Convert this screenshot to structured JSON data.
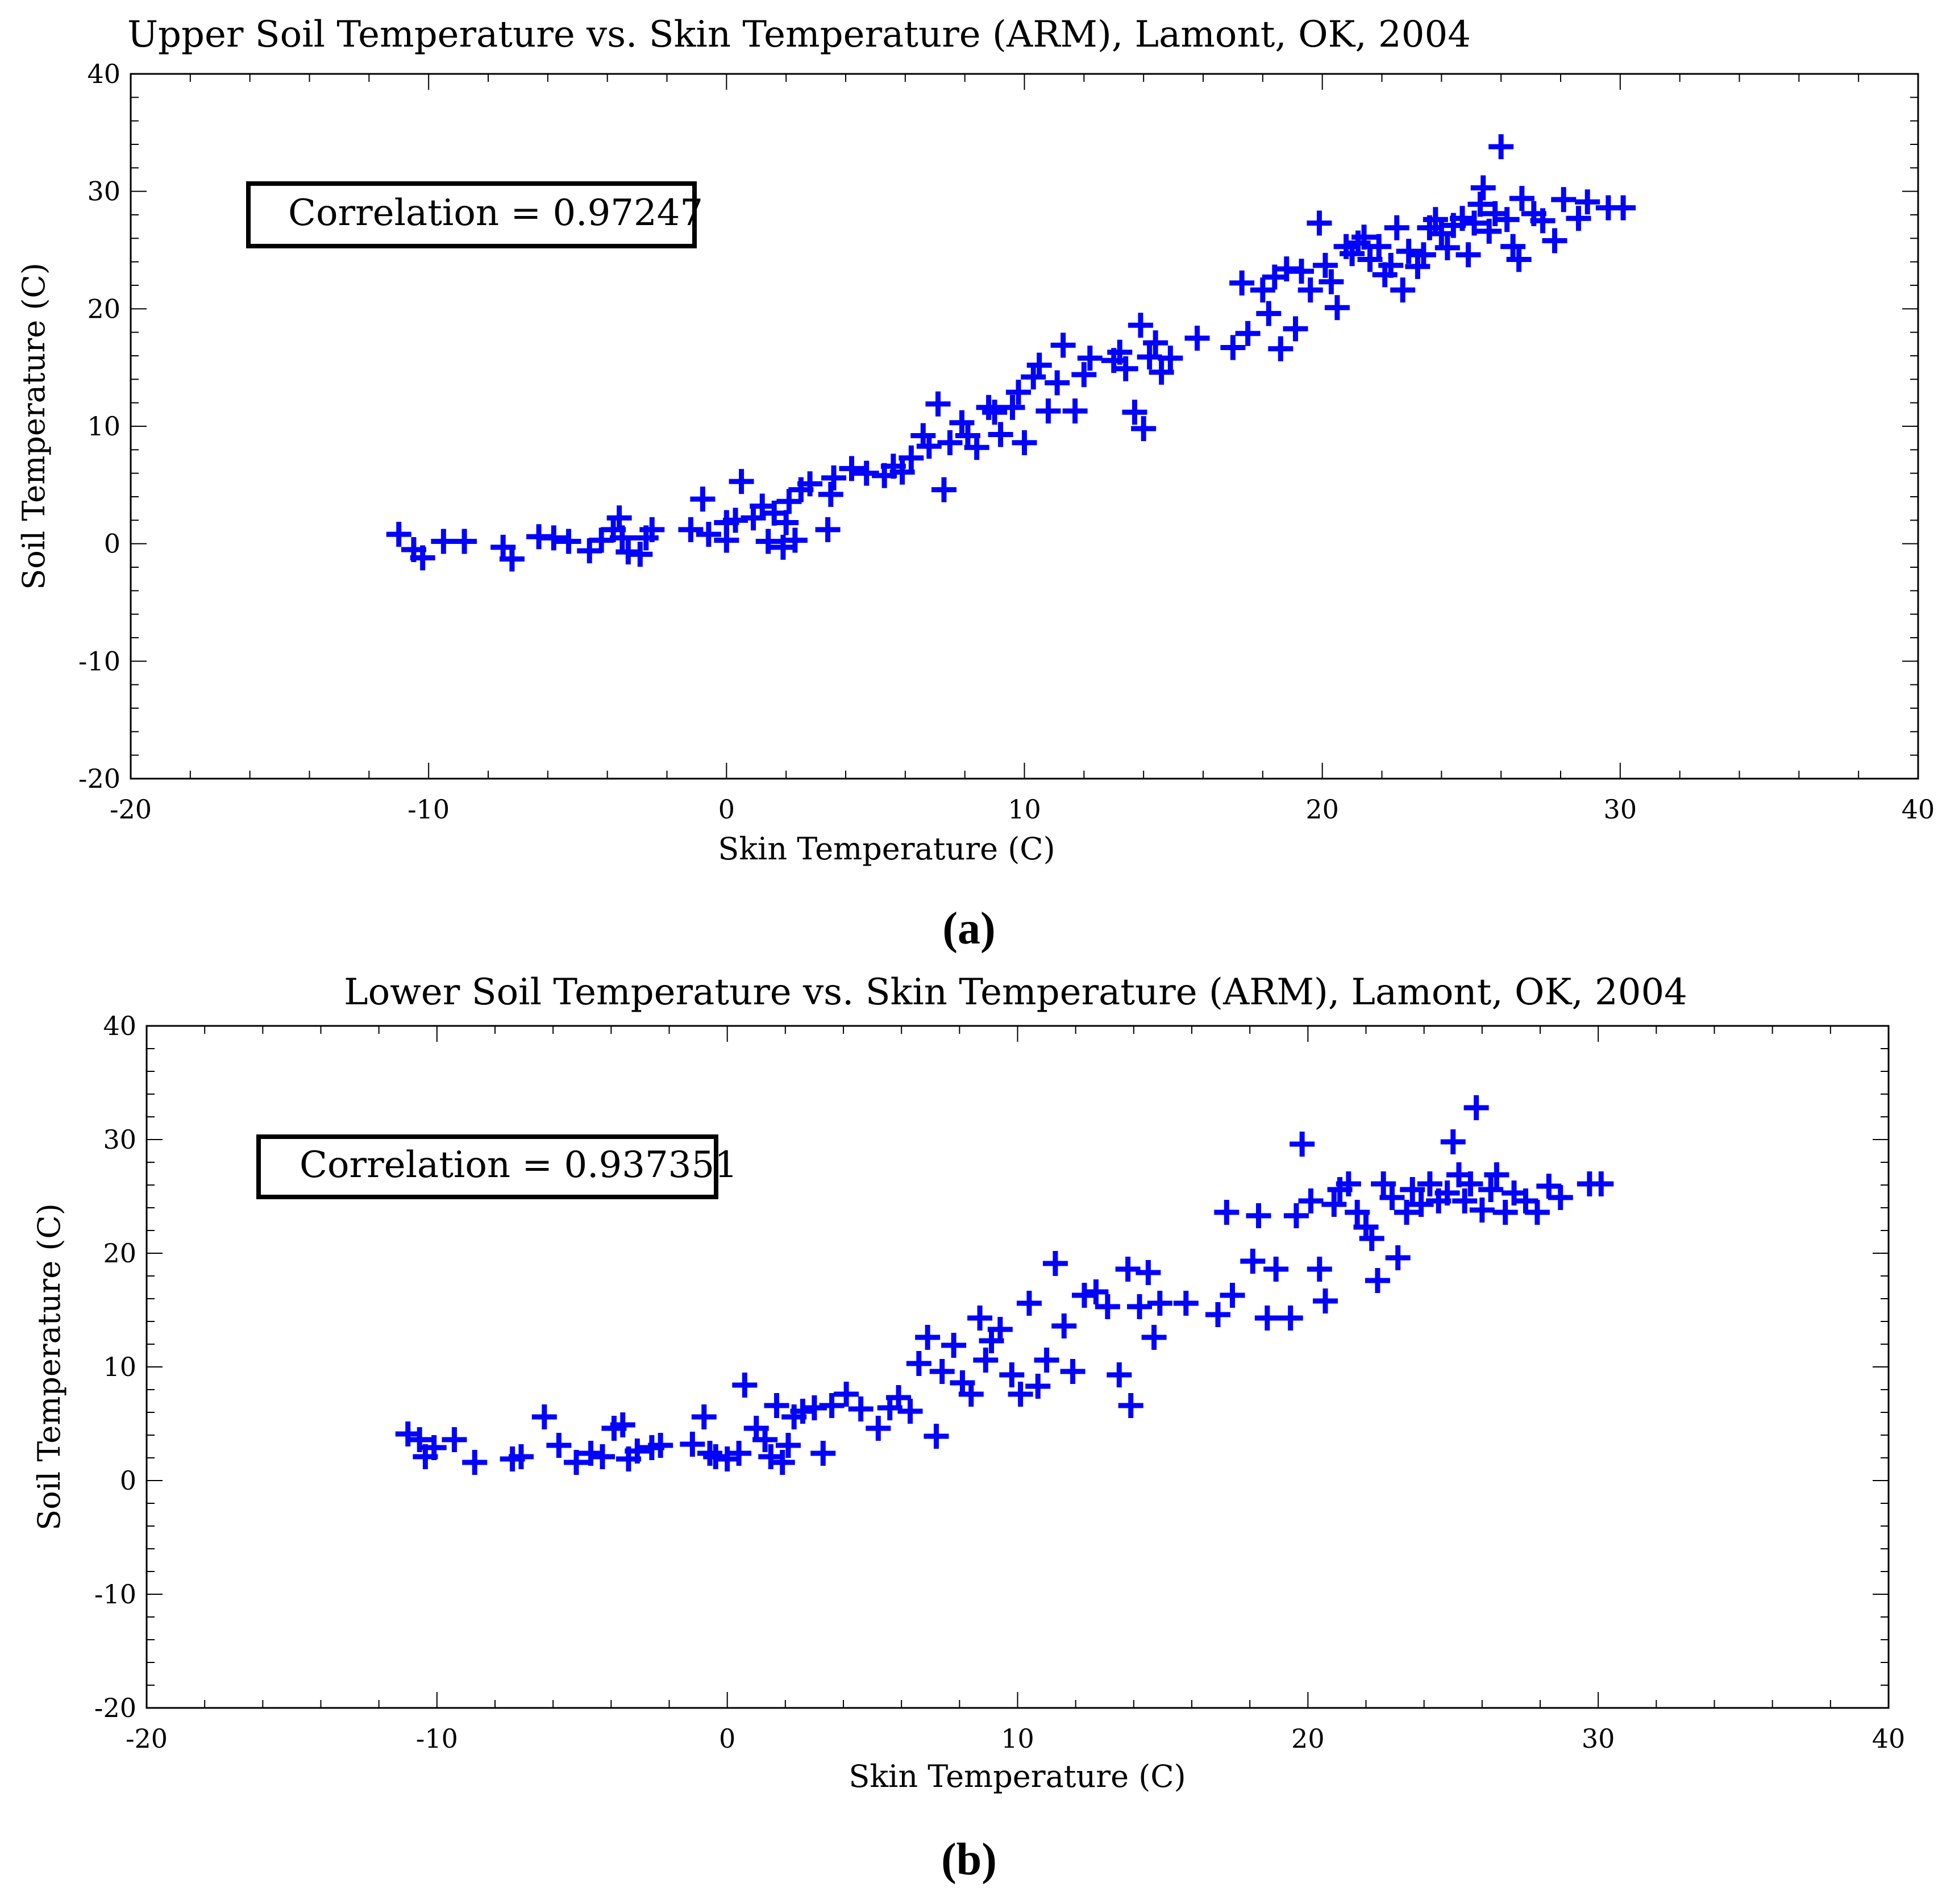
{
  "chart_data": [
    {
      "type": "scatter",
      "title": "Upper Soil Temperature vs. Skin Temperature (ARM), Lamont, OK, 2004",
      "xlabel": "Skin Temperature (C)",
      "ylabel": "Soil Temperature (C)",
      "xlim": [
        -20,
        40
      ],
      "ylim": [
        -20,
        40
      ],
      "xticks": [
        -20,
        -10,
        0,
        10,
        20,
        30,
        40
      ],
      "yticks": [
        -20,
        -10,
        0,
        10,
        20,
        30,
        40
      ],
      "annotation": "Correlation = 0.97247",
      "panel_label_open": "(",
      "panel_label_letter": "a",
      "panel_label_close": ")",
      "marker": "+",
      "color": "#0000ff",
      "points": [
        [
          -11,
          0.8
        ],
        [
          -10.5,
          -0.5
        ],
        [
          -10.2,
          -1.2
        ],
        [
          -9.5,
          0.2
        ],
        [
          -8.8,
          0.2
        ],
        [
          -7.5,
          -0.3
        ],
        [
          -7.2,
          -1.3
        ],
        [
          -6.3,
          0.6
        ],
        [
          -5.8,
          0.5
        ],
        [
          -5.3,
          0.2
        ],
        [
          -4.6,
          -0.6
        ],
        [
          -4.2,
          0.3
        ],
        [
          -3.8,
          1.2
        ],
        [
          -3.6,
          2.2
        ],
        [
          -3.5,
          0.5
        ],
        [
          -3.3,
          -0.7
        ],
        [
          -2.9,
          -0.9
        ],
        [
          -2.7,
          0.5
        ],
        [
          -2.5,
          1.2
        ],
        [
          -1.2,
          1.2
        ],
        [
          -0.8,
          3.8
        ],
        [
          -0.6,
          0.8
        ],
        [
          0,
          0.3
        ],
        [
          0,
          1.8
        ],
        [
          0.3,
          2
        ],
        [
          0.5,
          5.3
        ],
        [
          0.9,
          2.2
        ],
        [
          1.2,
          3.2
        ],
        [
          1.4,
          0.2
        ],
        [
          1.6,
          2.6
        ],
        [
          1.9,
          -0.3
        ],
        [
          2,
          1.8
        ],
        [
          2.1,
          3.6
        ],
        [
          2.3,
          0.3
        ],
        [
          2.5,
          4.6
        ],
        [
          2.8,
          5.1
        ],
        [
          3.4,
          1.2
        ],
        [
          3.5,
          4.2
        ],
        [
          3.6,
          5.6
        ],
        [
          4.2,
          6.4
        ],
        [
          4.7,
          6
        ],
        [
          5.3,
          5.8
        ],
        [
          5.6,
          6.6
        ],
        [
          5.9,
          6.1
        ],
        [
          6.2,
          7.3
        ],
        [
          6.6,
          9.2
        ],
        [
          6.8,
          8.3
        ],
        [
          7.1,
          11.9
        ],
        [
          7.3,
          4.6
        ],
        [
          7.5,
          8.6
        ],
        [
          7.9,
          10.3
        ],
        [
          8.1,
          9.2
        ],
        [
          8.4,
          8.2
        ],
        [
          8.8,
          11.6
        ],
        [
          9,
          11.2
        ],
        [
          9.2,
          9.3
        ],
        [
          9.6,
          11.6
        ],
        [
          9.8,
          12.9
        ],
        [
          10,
          8.6
        ],
        [
          10.3,
          14.2
        ],
        [
          10.5,
          15.2
        ],
        [
          10.8,
          11.3
        ],
        [
          11.1,
          13.7
        ],
        [
          11.3,
          16.9
        ],
        [
          11.7,
          11.3
        ],
        [
          12,
          14.4
        ],
        [
          12.2,
          15.8
        ],
        [
          13,
          15.6
        ],
        [
          13.2,
          16.3
        ],
        [
          13.4,
          14.9
        ],
        [
          13.7,
          11.2
        ],
        [
          13.9,
          18.6
        ],
        [
          14,
          9.8
        ],
        [
          14.2,
          15.9
        ],
        [
          14.4,
          17.1
        ],
        [
          14.6,
          14.6
        ],
        [
          14.9,
          15.8
        ],
        [
          15.8,
          17.5
        ],
        [
          17,
          16.7
        ],
        [
          17.3,
          22.2
        ],
        [
          17.5,
          17.9
        ],
        [
          18,
          21.6
        ],
        [
          18.2,
          19.6
        ],
        [
          18.4,
          22.7
        ],
        [
          18.6,
          16.6
        ],
        [
          18.8,
          23.4
        ],
        [
          19.1,
          18.3
        ],
        [
          19.3,
          23.2
        ],
        [
          19.6,
          21.6
        ],
        [
          19.9,
          27.3
        ],
        [
          20.1,
          23.7
        ],
        [
          20.3,
          22.3
        ],
        [
          20.5,
          20.1
        ],
        [
          20.8,
          25.3
        ],
        [
          21,
          24.7
        ],
        [
          21.2,
          25.6
        ],
        [
          21.4,
          26.1
        ],
        [
          21.6,
          24.2
        ],
        [
          21.9,
          25.3
        ],
        [
          22.1,
          22.9
        ],
        [
          22.3,
          23.7
        ],
        [
          22.5,
          26.9
        ],
        [
          22.7,
          21.6
        ],
        [
          22.9,
          24.9
        ],
        [
          23.2,
          23.6
        ],
        [
          23.4,
          24.6
        ],
        [
          23.6,
          26.9
        ],
        [
          23.8,
          27.6
        ],
        [
          24,
          26.4
        ],
        [
          24.2,
          25.2
        ],
        [
          24.4,
          27.1
        ],
        [
          24.7,
          27.7
        ],
        [
          24.9,
          24.6
        ],
        [
          25.1,
          27.3
        ],
        [
          25.3,
          28.9
        ],
        [
          25.4,
          30.3
        ],
        [
          25.6,
          26.6
        ],
        [
          25.8,
          28.1
        ],
        [
          26,
          33.8
        ],
        [
          26.2,
          27.6
        ],
        [
          26.4,
          25.3
        ],
        [
          26.6,
          24.2
        ],
        [
          26.7,
          29.4
        ],
        [
          27.1,
          28.1
        ],
        [
          27.4,
          27.5
        ],
        [
          27.8,
          25.8
        ],
        [
          28.1,
          29.3
        ],
        [
          28.6,
          27.7
        ],
        [
          28.9,
          29.1
        ],
        [
          29.6,
          28.6
        ],
        [
          30.1,
          28.6
        ]
      ]
    },
    {
      "type": "scatter",
      "title": "Lower Soil Temperature vs. Skin Temperature (ARM), Lamont, OK, 2004",
      "xlabel": "Skin Temperature (C)",
      "ylabel": "Soil Temperature (C)",
      "xlim": [
        -20,
        40
      ],
      "ylim": [
        -20,
        40
      ],
      "xticks": [
        -20,
        -10,
        0,
        10,
        20,
        30,
        40
      ],
      "yticks": [
        -20,
        -10,
        0,
        10,
        20,
        30,
        40
      ],
      "annotation": "Correlation = 0.937351",
      "panel_label_open": "(",
      "panel_label_letter": "b",
      "panel_label_close": ")",
      "marker": "+",
      "color": "#0000ff",
      "points": [
        [
          -11,
          4.1
        ],
        [
          -10.6,
          3.6
        ],
        [
          -10.4,
          2.1
        ],
        [
          -10.1,
          2.9
        ],
        [
          -9.4,
          3.6
        ],
        [
          -8.7,
          1.6
        ],
        [
          -7.4,
          1.9
        ],
        [
          -7.1,
          2.1
        ],
        [
          -6.3,
          5.6
        ],
        [
          -5.8,
          3.1
        ],
        [
          -5.2,
          1.6
        ],
        [
          -4.7,
          2.4
        ],
        [
          -4.3,
          2.1
        ],
        [
          -3.9,
          4.6
        ],
        [
          -3.6,
          4.9
        ],
        [
          -3.4,
          1.9
        ],
        [
          -3.1,
          2.6
        ],
        [
          -2.6,
          2.9
        ],
        [
          -2.3,
          3.1
        ],
        [
          -1.2,
          3.2
        ],
        [
          -0.8,
          5.6
        ],
        [
          -0.6,
          2.4
        ],
        [
          -0.4,
          2.1
        ],
        [
          0,
          1.9
        ],
        [
          0.4,
          2.4
        ],
        [
          0.6,
          8.4
        ],
        [
          1,
          4.6
        ],
        [
          1.3,
          3.6
        ],
        [
          1.5,
          2.1
        ],
        [
          1.7,
          6.6
        ],
        [
          1.9,
          1.6
        ],
        [
          2.1,
          3.1
        ],
        [
          2.3,
          5.6
        ],
        [
          2.6,
          6.1
        ],
        [
          3,
          6.4
        ],
        [
          3.3,
          2.4
        ],
        [
          3.6,
          6.6
        ],
        [
          4.1,
          7.6
        ],
        [
          4.6,
          6.3
        ],
        [
          5.2,
          4.6
        ],
        [
          5.6,
          6.4
        ],
        [
          5.9,
          7.3
        ],
        [
          6.3,
          6.1
        ],
        [
          6.6,
          10.3
        ],
        [
          6.9,
          12.6
        ],
        [
          7.2,
          3.9
        ],
        [
          7.4,
          9.6
        ],
        [
          7.8,
          11.9
        ],
        [
          8.1,
          8.6
        ],
        [
          8.4,
          7.6
        ],
        [
          8.7,
          14.3
        ],
        [
          8.9,
          10.6
        ],
        [
          9.1,
          12.3
        ],
        [
          9.4,
          13.3
        ],
        [
          9.8,
          9.3
        ],
        [
          10.1,
          7.6
        ],
        [
          10.4,
          15.6
        ],
        [
          10.7,
          8.3
        ],
        [
          11,
          10.6
        ],
        [
          11.3,
          19.1
        ],
        [
          11.6,
          13.6
        ],
        [
          11.9,
          9.6
        ],
        [
          12.3,
          16.3
        ],
        [
          12.7,
          16.6
        ],
        [
          13.1,
          15.3
        ],
        [
          13.5,
          9.3
        ],
        [
          13.8,
          18.6
        ],
        [
          13.9,
          6.6
        ],
        [
          14.2,
          15.3
        ],
        [
          14.5,
          18.3
        ],
        [
          14.7,
          12.6
        ],
        [
          14.9,
          15.6
        ],
        [
          15.8,
          15.6
        ],
        [
          16.9,
          14.6
        ],
        [
          17.2,
          23.6
        ],
        [
          17.4,
          16.3
        ],
        [
          18.1,
          19.3
        ],
        [
          18.3,
          23.3
        ],
        [
          18.6,
          14.3
        ],
        [
          18.9,
          18.6
        ],
        [
          19.4,
          14.3
        ],
        [
          19.6,
          23.3
        ],
        [
          19.8,
          29.6
        ],
        [
          20.1,
          24.6
        ],
        [
          20.4,
          18.6
        ],
        [
          20.6,
          15.8
        ],
        [
          20.9,
          24.3
        ],
        [
          21.1,
          25.6
        ],
        [
          21.4,
          26.1
        ],
        [
          21.7,
          23.6
        ],
        [
          22,
          22.3
        ],
        [
          22.2,
          21.3
        ],
        [
          22.4,
          17.6
        ],
        [
          22.6,
          26.1
        ],
        [
          22.9,
          24.9
        ],
        [
          23.1,
          19.6
        ],
        [
          23.4,
          23.6
        ],
        [
          23.6,
          25.6
        ],
        [
          23.9,
          24.3
        ],
        [
          24.2,
          26.1
        ],
        [
          24.5,
          24.6
        ],
        [
          24.8,
          25.3
        ],
        [
          25,
          29.8
        ],
        [
          25.2,
          26.9
        ],
        [
          25.4,
          24.6
        ],
        [
          25.6,
          26.1
        ],
        [
          25.8,
          32.8
        ],
        [
          26,
          23.8
        ],
        [
          26.3,
          25.6
        ],
        [
          26.5,
          26.9
        ],
        [
          26.8,
          23.6
        ],
        [
          27.1,
          25.3
        ],
        [
          27.5,
          24.6
        ],
        [
          27.9,
          23.6
        ],
        [
          28.3,
          25.9
        ],
        [
          28.7,
          24.9
        ],
        [
          29.7,
          26.1
        ],
        [
          30.1,
          26.1
        ]
      ]
    }
  ]
}
